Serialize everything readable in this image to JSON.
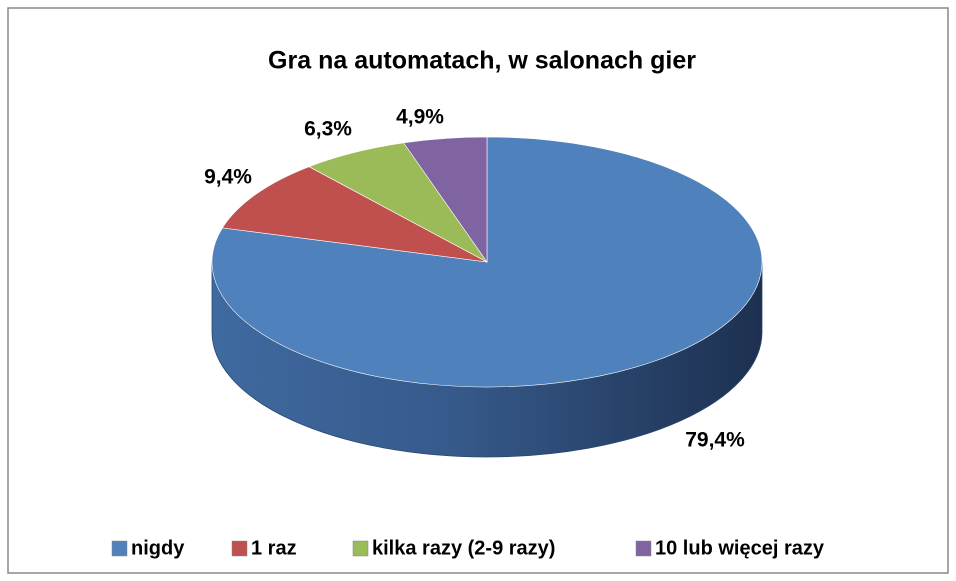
{
  "chart_data": {
    "type": "pie",
    "title": "Gra na automatach, w salonach gier",
    "categories": [
      "nigdy",
      "1 raz",
      "kilka razy (2-9 razy)",
      "10 lub więcej razy"
    ],
    "values": [
      79.4,
      9.4,
      6.3,
      4.9
    ],
    "value_labels": [
      "79,4%",
      "9,4%",
      "6,3%",
      "4,9%"
    ],
    "colors": [
      "#4f81bd",
      "#c0504d",
      "#9bbb59",
      "#8064a2"
    ],
    "legend": "bottom"
  }
}
